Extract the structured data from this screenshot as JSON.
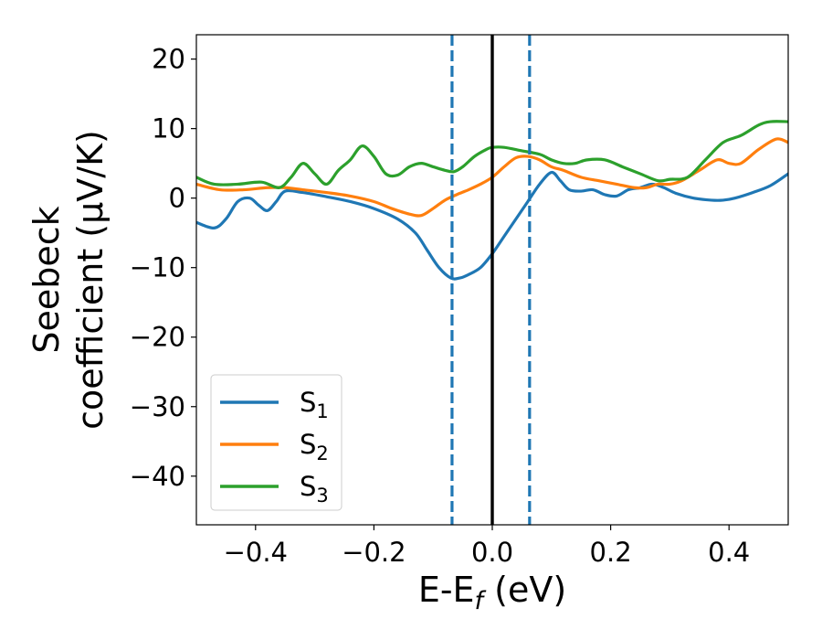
{
  "chart_data": {
    "type": "line",
    "xlabel": "E-E",
    "xlabel_sub": "f",
    "xlabel_suffix": " (eV)",
    "ylabel_line1": "Seebeck",
    "ylabel_line2": "coefficient  (μV/K)",
    "xlim": [
      -0.5,
      0.5
    ],
    "ylim": [
      -47,
      23.5
    ],
    "xticks": [
      -0.4,
      -0.2,
      0.0,
      0.2,
      0.4
    ],
    "xtick_labels": [
      "−0.4",
      "−0.2",
      "0.0",
      "0.2",
      "0.4"
    ],
    "yticks": [
      20,
      10,
      0,
      -10,
      -20,
      -30,
      -40
    ],
    "ytick_labels": [
      "20",
      "10",
      "0",
      "−10",
      "−20",
      "−30",
      "−40"
    ],
    "grid": false,
    "legend_position": "lower-left",
    "vlines": [
      {
        "x": -0.068,
        "style": "dashed",
        "color": "#1f77b4"
      },
      {
        "x": 0.0,
        "style": "solid",
        "color": "#000000"
      },
      {
        "x": 0.063,
        "style": "dashed",
        "color": "#1f77b4"
      }
    ],
    "series": [
      {
        "name": "S",
        "sub": "1",
        "color": "#1f77b4",
        "x": [
          -0.5,
          -0.47,
          -0.45,
          -0.43,
          -0.41,
          -0.395,
          -0.38,
          -0.365,
          -0.35,
          -0.32,
          -0.28,
          -0.24,
          -0.2,
          -0.16,
          -0.13,
          -0.11,
          -0.09,
          -0.07,
          -0.055,
          -0.04,
          -0.02,
          0.0,
          0.02,
          0.04,
          0.06,
          0.08,
          0.1,
          0.115,
          0.13,
          0.15,
          0.17,
          0.19,
          0.21,
          0.23,
          0.25,
          0.27,
          0.29,
          0.31,
          0.34,
          0.37,
          0.39,
          0.41,
          0.44,
          0.47,
          0.5
        ],
        "y": [
          -3.5,
          -4.3,
          -3.0,
          -0.5,
          0.0,
          -1.0,
          -1.8,
          -0.5,
          1.0,
          0.8,
          0.2,
          -0.5,
          -1.5,
          -3.0,
          -5.0,
          -7.5,
          -10.0,
          -11.5,
          -11.5,
          -11.0,
          -10.0,
          -8.0,
          -5.5,
          -3.0,
          -0.5,
          2.0,
          3.7,
          2.5,
          1.2,
          1.0,
          1.2,
          0.5,
          0.3,
          1.2,
          1.5,
          2.0,
          1.5,
          0.7,
          0.0,
          -0.3,
          -0.3,
          0.0,
          0.8,
          1.8,
          3.5
        ]
      },
      {
        "name": "S",
        "sub": "2",
        "color": "#ff7f0e",
        "x": [
          -0.5,
          -0.46,
          -0.42,
          -0.38,
          -0.35,
          -0.32,
          -0.28,
          -0.24,
          -0.2,
          -0.17,
          -0.14,
          -0.12,
          -0.1,
          -0.08,
          -0.06,
          -0.04,
          -0.02,
          0.0,
          0.02,
          0.04,
          0.06,
          0.08,
          0.1,
          0.12,
          0.15,
          0.18,
          0.21,
          0.24,
          0.26,
          0.28,
          0.3,
          0.32,
          0.35,
          0.38,
          0.4,
          0.42,
          0.45,
          0.48,
          0.5
        ],
        "y": [
          2.0,
          1.2,
          1.2,
          1.5,
          1.5,
          1.2,
          0.8,
          0.3,
          -0.5,
          -1.5,
          -2.3,
          -2.5,
          -1.5,
          -0.3,
          0.5,
          1.2,
          2.0,
          3.0,
          4.5,
          5.8,
          6.0,
          5.5,
          4.5,
          4.0,
          3.0,
          2.5,
          2.0,
          1.5,
          1.5,
          2.0,
          2.0,
          2.5,
          4.0,
          5.5,
          5.0,
          5.0,
          7.0,
          8.5,
          8.0
        ]
      },
      {
        "name": "S",
        "sub": "3",
        "color": "#2ca02c",
        "x": [
          -0.5,
          -0.47,
          -0.43,
          -0.39,
          -0.36,
          -0.34,
          -0.32,
          -0.3,
          -0.28,
          -0.26,
          -0.24,
          -0.22,
          -0.2,
          -0.18,
          -0.16,
          -0.14,
          -0.12,
          -0.1,
          -0.08,
          -0.065,
          -0.05,
          -0.03,
          -0.01,
          0.0,
          0.02,
          0.05,
          0.08,
          0.1,
          0.12,
          0.14,
          0.16,
          0.19,
          0.22,
          0.25,
          0.28,
          0.3,
          0.33,
          0.36,
          0.39,
          0.42,
          0.45,
          0.47,
          0.5
        ],
        "y": [
          3.0,
          2.0,
          2.0,
          2.3,
          1.5,
          3.0,
          5.0,
          3.5,
          2.0,
          4.0,
          5.5,
          7.5,
          6.0,
          3.5,
          3.3,
          4.5,
          5.0,
          4.5,
          4.0,
          3.8,
          4.5,
          6.0,
          7.0,
          7.3,
          7.3,
          6.8,
          6.3,
          5.5,
          5.0,
          5.0,
          5.5,
          5.5,
          4.5,
          3.5,
          2.5,
          2.7,
          3.0,
          5.5,
          8.0,
          9.0,
          10.5,
          11.0,
          11.0
        ]
      }
    ]
  }
}
